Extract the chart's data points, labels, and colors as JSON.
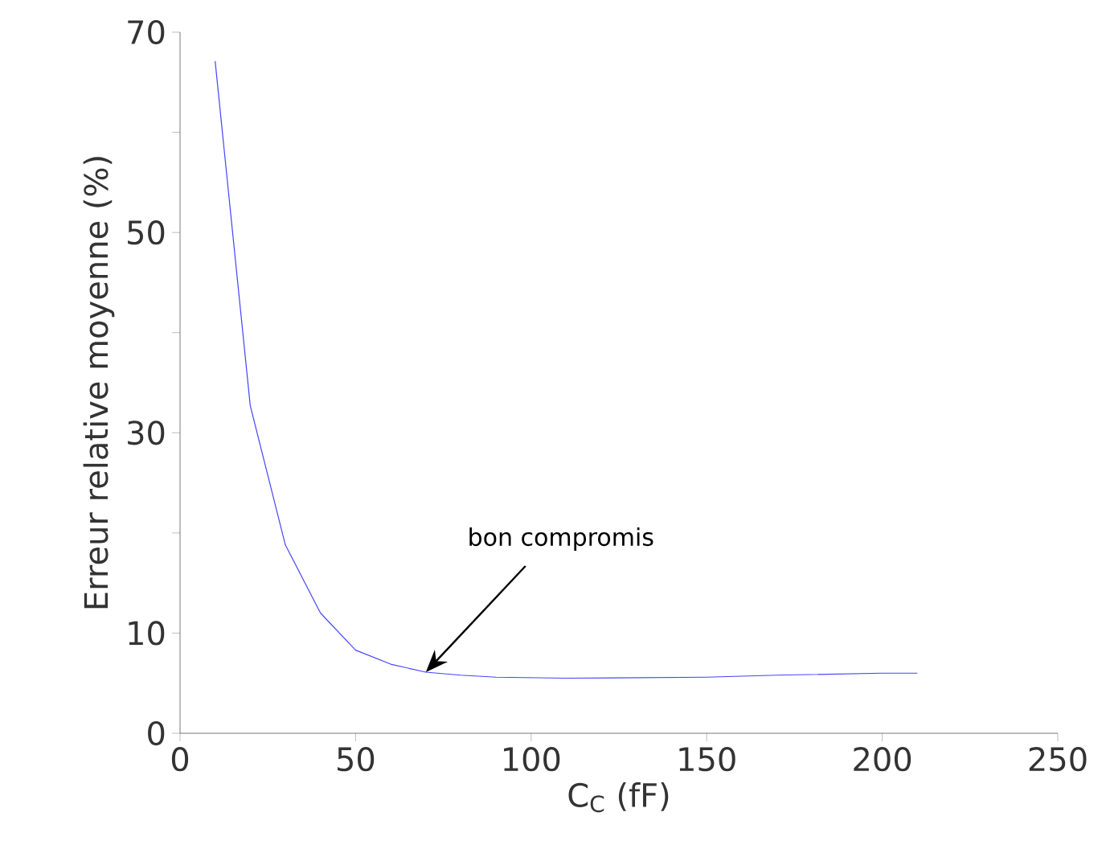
{
  "chart_data": {
    "type": "line",
    "xlabel": "C$_{C}$ (fF)",
    "ylabel": "Erreur relative moyenne (%)",
    "x": [
      10,
      20,
      30,
      40,
      50,
      60,
      70,
      80,
      90,
      110,
      150,
      170,
      200,
      210
    ],
    "series": [
      {
        "color": "#4444ff",
        "values": [
          67.1,
          32.7,
          18.8,
          12.0,
          8.3,
          6.9,
          6.1,
          5.8,
          5.6,
          5.5,
          5.6,
          5.8,
          6.0,
          6.0
        ]
      }
    ],
    "xlim": [
      0,
      250
    ],
    "xticks": [
      0,
      50,
      100,
      150,
      200,
      250
    ],
    "ylim": [
      0,
      70
    ],
    "yticks": [
      0,
      10,
      {
        "value": 20,
        "label": null
      },
      30,
      {
        "value": 40,
        "label": null
      },
      50,
      {
        "value": 60,
        "label": null
      },
      70
    ],
    "annotations": [
      {
        "text": "bon compromis",
        "x": 70,
        "y": 6.1
      }
    ]
  }
}
